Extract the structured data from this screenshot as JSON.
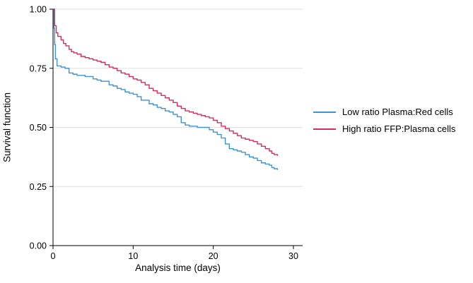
{
  "chart_data": {
    "type": "line",
    "subtype": "kaplan-meier-step",
    "title": "",
    "xlabel": "Analysis time (days)",
    "ylabel": "Survival function",
    "xlim": [
      0,
      30
    ],
    "ylim": [
      0,
      1
    ],
    "xticks": [
      "0",
      "10",
      "20",
      "30"
    ],
    "yticks": [
      "0.00",
      "0.25",
      "0.50",
      "0.75",
      "1.00"
    ],
    "grid": "horizontal",
    "legend_position": "right",
    "colors": {
      "grid": "#e0e0e0",
      "axis": "#000000"
    },
    "series": [
      {
        "name": "Low ratio Plasma:Red cells",
        "color": "#3e93d0",
        "points": [
          [
            0,
            1.0
          ],
          [
            0.1,
            0.92
          ],
          [
            0.2,
            0.85
          ],
          [
            0.3,
            0.79
          ],
          [
            0.5,
            0.76
          ],
          [
            1,
            0.755
          ],
          [
            1.5,
            0.75
          ],
          [
            2,
            0.73
          ],
          [
            2.5,
            0.725
          ],
          [
            3,
            0.72
          ],
          [
            4,
            0.715
          ],
          [
            5,
            0.705
          ],
          [
            5.5,
            0.7
          ],
          [
            6,
            0.695
          ],
          [
            7,
            0.68
          ],
          [
            7.5,
            0.675
          ],
          [
            8,
            0.665
          ],
          [
            8.5,
            0.66
          ],
          [
            9,
            0.65
          ],
          [
            9.5,
            0.645
          ],
          [
            10,
            0.64
          ],
          [
            10.5,
            0.63
          ],
          [
            11,
            0.615
          ],
          [
            12,
            0.6
          ],
          [
            12.5,
            0.595
          ],
          [
            13,
            0.585
          ],
          [
            13.5,
            0.58
          ],
          [
            14,
            0.57
          ],
          [
            14.5,
            0.565
          ],
          [
            15,
            0.555
          ],
          [
            15.5,
            0.545
          ],
          [
            16,
            0.52
          ],
          [
            16.5,
            0.51
          ],
          [
            17,
            0.505
          ],
          [
            18,
            0.5
          ],
          [
            19,
            0.5
          ],
          [
            19.5,
            0.49
          ],
          [
            20,
            0.48
          ],
          [
            20.5,
            0.47
          ],
          [
            21,
            0.455
          ],
          [
            21.5,
            0.43
          ],
          [
            22,
            0.41
          ],
          [
            22.5,
            0.405
          ],
          [
            23,
            0.4
          ],
          [
            23.5,
            0.395
          ],
          [
            24,
            0.385
          ],
          [
            24.5,
            0.375
          ],
          [
            25,
            0.37
          ],
          [
            25.5,
            0.36
          ],
          [
            26,
            0.35
          ],
          [
            26.5,
            0.345
          ],
          [
            27,
            0.34
          ],
          [
            27.3,
            0.33
          ],
          [
            27.6,
            0.325
          ],
          [
            28,
            0.32
          ]
        ]
      },
      {
        "name": "High ratio FFP:Plasma cells",
        "color": "#d62e5c",
        "points": [
          [
            0,
            1.0
          ],
          [
            0.2,
            0.93
          ],
          [
            0.4,
            0.9
          ],
          [
            0.6,
            0.885
          ],
          [
            1,
            0.87
          ],
          [
            1.3,
            0.855
          ],
          [
            1.6,
            0.845
          ],
          [
            2,
            0.83
          ],
          [
            2.3,
            0.82
          ],
          [
            2.6,
            0.815
          ],
          [
            3,
            0.81
          ],
          [
            3.5,
            0.8
          ],
          [
            4,
            0.795
          ],
          [
            4.5,
            0.79
          ],
          [
            5,
            0.785
          ],
          [
            5.5,
            0.78
          ],
          [
            6,
            0.775
          ],
          [
            6.5,
            0.765
          ],
          [
            7,
            0.755
          ],
          [
            7.5,
            0.75
          ],
          [
            8,
            0.74
          ],
          [
            8.5,
            0.73
          ],
          [
            9,
            0.725
          ],
          [
            9.5,
            0.715
          ],
          [
            10,
            0.705
          ],
          [
            10.5,
            0.7
          ],
          [
            11,
            0.69
          ],
          [
            11.5,
            0.68
          ],
          [
            12,
            0.665
          ],
          [
            12.5,
            0.655
          ],
          [
            13,
            0.645
          ],
          [
            13.5,
            0.635
          ],
          [
            14,
            0.625
          ],
          [
            14.5,
            0.615
          ],
          [
            15,
            0.605
          ],
          [
            15.5,
            0.59
          ],
          [
            16,
            0.58
          ],
          [
            16.5,
            0.57
          ],
          [
            17,
            0.565
          ],
          [
            17.5,
            0.56
          ],
          [
            18,
            0.555
          ],
          [
            18.5,
            0.55
          ],
          [
            19,
            0.545
          ],
          [
            19.5,
            0.54
          ],
          [
            20,
            0.53
          ],
          [
            20.5,
            0.52
          ],
          [
            21,
            0.505
          ],
          [
            21.5,
            0.495
          ],
          [
            22,
            0.485
          ],
          [
            22.5,
            0.475
          ],
          [
            23,
            0.465
          ],
          [
            23.5,
            0.455
          ],
          [
            24,
            0.45
          ],
          [
            24.5,
            0.445
          ],
          [
            25,
            0.44
          ],
          [
            25.5,
            0.43
          ],
          [
            26,
            0.42
          ],
          [
            26.5,
            0.41
          ],
          [
            27,
            0.4
          ],
          [
            27.3,
            0.39
          ],
          [
            27.6,
            0.385
          ],
          [
            28,
            0.38
          ]
        ]
      }
    ]
  }
}
